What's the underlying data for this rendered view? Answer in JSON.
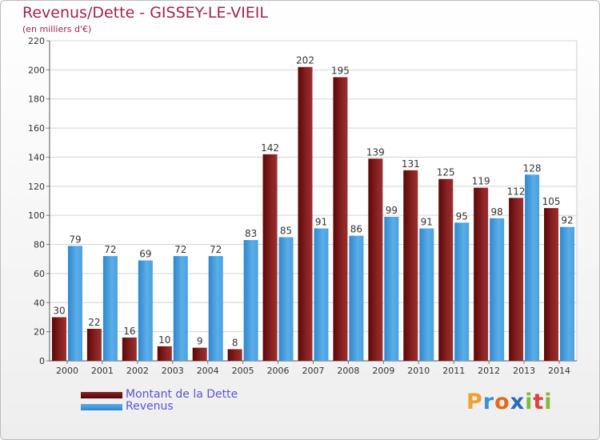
{
  "chart_data": {
    "type": "bar",
    "title": "Revenus/Dette - GISSEY-LE-VIEIL",
    "subtitle": "(en milliers d'€)",
    "categories": [
      "2000",
      "2001",
      "2002",
      "2003",
      "2004",
      "2005",
      "2006",
      "2007",
      "2008",
      "2009",
      "2010",
      "2011",
      "2012",
      "2013",
      "2014"
    ],
    "series": [
      {
        "name": "Montant de la Dette",
        "color": "#7a1414",
        "values": [
          30,
          22,
          16,
          10,
          9,
          8,
          142,
          202,
          195,
          139,
          131,
          125,
          119,
          112,
          105
        ]
      },
      {
        "name": "Revenus",
        "color": "#4a9fe0",
        "values": [
          79,
          72,
          69,
          72,
          72,
          83,
          85,
          91,
          86,
          99,
          91,
          95,
          98,
          128,
          92
        ]
      }
    ],
    "ylim": [
      0,
      220
    ],
    "yticks": [
      0,
      20,
      40,
      60,
      80,
      100,
      120,
      140,
      160,
      180,
      200,
      220
    ],
    "grid": true,
    "legend": "bottom-left"
  },
  "logo": {
    "letters": [
      "P",
      "r",
      "o",
      "x",
      "i",
      "t",
      "i"
    ],
    "colors": [
      "#f0a030",
      "#3a8fd8",
      "#e06a20",
      "#2a6ab8",
      "#80b840",
      "#e04040",
      "#80b840"
    ]
  }
}
